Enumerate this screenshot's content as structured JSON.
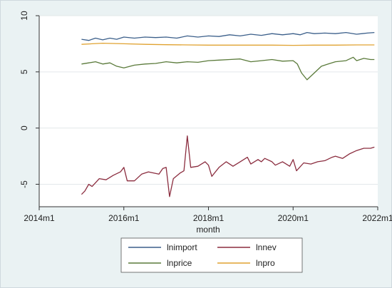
{
  "chart_data": {
    "type": "line",
    "title": "",
    "xlabel": "month",
    "ylabel": "",
    "x_ticks": [
      "2014m1",
      "2016m1",
      "2018m1",
      "2020m1",
      "2022m1"
    ],
    "y_ticks": [
      "-5",
      "0",
      "5",
      "10"
    ],
    "xlim": [
      2014.0,
      2022.0
    ],
    "ylim": [
      -7,
      10
    ],
    "grid": "horizontal",
    "legend_position": "bottom",
    "series": [
      {
        "name": "lnimport",
        "color": "#3b5f8a",
        "points": [
          [
            2015.0,
            7.9
          ],
          [
            2015.17,
            7.8
          ],
          [
            2015.33,
            8.0
          ],
          [
            2015.5,
            7.85
          ],
          [
            2015.67,
            8.0
          ],
          [
            2015.83,
            7.9
          ],
          [
            2016.0,
            8.1
          ],
          [
            2016.25,
            8.0
          ],
          [
            2016.5,
            8.1
          ],
          [
            2016.75,
            8.05
          ],
          [
            2017.0,
            8.1
          ],
          [
            2017.25,
            8.0
          ],
          [
            2017.5,
            8.2
          ],
          [
            2017.75,
            8.1
          ],
          [
            2018.0,
            8.2
          ],
          [
            2018.25,
            8.15
          ],
          [
            2018.5,
            8.3
          ],
          [
            2018.75,
            8.2
          ],
          [
            2019.0,
            8.35
          ],
          [
            2019.25,
            8.25
          ],
          [
            2019.5,
            8.4
          ],
          [
            2019.75,
            8.3
          ],
          [
            2020.0,
            8.4
          ],
          [
            2020.17,
            8.3
          ],
          [
            2020.33,
            8.5
          ],
          [
            2020.5,
            8.4
          ],
          [
            2020.75,
            8.45
          ],
          [
            2021.0,
            8.4
          ],
          [
            2021.25,
            8.5
          ],
          [
            2021.5,
            8.35
          ],
          [
            2021.75,
            8.45
          ],
          [
            2021.92,
            8.5
          ]
        ]
      },
      {
        "name": "lnnev",
        "color": "#8b2d3f",
        "points": [
          [
            2015.0,
            -5.9
          ],
          [
            2015.08,
            -5.6
          ],
          [
            2015.17,
            -5.0
          ],
          [
            2015.25,
            -5.2
          ],
          [
            2015.42,
            -4.5
          ],
          [
            2015.58,
            -4.6
          ],
          [
            2015.75,
            -4.2
          ],
          [
            2015.92,
            -3.9
          ],
          [
            2016.0,
            -3.5
          ],
          [
            2016.08,
            -4.7
          ],
          [
            2016.25,
            -4.7
          ],
          [
            2016.42,
            -4.1
          ],
          [
            2016.58,
            -3.9
          ],
          [
            2016.83,
            -4.1
          ],
          [
            2016.92,
            -3.6
          ],
          [
            2017.0,
            -3.5
          ],
          [
            2017.08,
            -6.1
          ],
          [
            2017.17,
            -4.5
          ],
          [
            2017.33,
            -4.0
          ],
          [
            2017.42,
            -3.8
          ],
          [
            2017.5,
            -0.7
          ],
          [
            2017.58,
            -3.5
          ],
          [
            2017.75,
            -3.4
          ],
          [
            2017.92,
            -3.0
          ],
          [
            2018.0,
            -3.3
          ],
          [
            2018.08,
            -4.3
          ],
          [
            2018.25,
            -3.5
          ],
          [
            2018.42,
            -3.0
          ],
          [
            2018.58,
            -3.4
          ],
          [
            2018.75,
            -3.0
          ],
          [
            2018.92,
            -2.6
          ],
          [
            2019.0,
            -3.2
          ],
          [
            2019.17,
            -2.8
          ],
          [
            2019.25,
            -3.0
          ],
          [
            2019.33,
            -2.7
          ],
          [
            2019.5,
            -3.0
          ],
          [
            2019.58,
            -3.3
          ],
          [
            2019.75,
            -3.0
          ],
          [
            2019.92,
            -3.4
          ],
          [
            2020.0,
            -2.8
          ],
          [
            2020.08,
            -3.8
          ],
          [
            2020.25,
            -3.1
          ],
          [
            2020.42,
            -3.2
          ],
          [
            2020.58,
            -3.0
          ],
          [
            2020.75,
            -2.9
          ],
          [
            2020.92,
            -2.6
          ],
          [
            2021.0,
            -2.5
          ],
          [
            2021.17,
            -2.7
          ],
          [
            2021.33,
            -2.3
          ],
          [
            2021.5,
            -2.0
          ],
          [
            2021.67,
            -1.8
          ],
          [
            2021.83,
            -1.8
          ],
          [
            2021.92,
            -1.7
          ]
        ]
      },
      {
        "name": "lnprice",
        "color": "#5a7a3a",
        "points": [
          [
            2015.0,
            5.7
          ],
          [
            2015.17,
            5.8
          ],
          [
            2015.33,
            5.9
          ],
          [
            2015.5,
            5.7
          ],
          [
            2015.67,
            5.8
          ],
          [
            2015.83,
            5.5
          ],
          [
            2016.0,
            5.35
          ],
          [
            2016.25,
            5.6
          ],
          [
            2016.5,
            5.7
          ],
          [
            2016.75,
            5.75
          ],
          [
            2017.0,
            5.9
          ],
          [
            2017.25,
            5.8
          ],
          [
            2017.5,
            5.9
          ],
          [
            2017.75,
            5.85
          ],
          [
            2018.0,
            6.0
          ],
          [
            2018.25,
            6.05
          ],
          [
            2018.5,
            6.1
          ],
          [
            2018.75,
            6.15
          ],
          [
            2019.0,
            5.9
          ],
          [
            2019.25,
            6.0
          ],
          [
            2019.5,
            6.1
          ],
          [
            2019.75,
            5.95
          ],
          [
            2020.0,
            6.0
          ],
          [
            2020.1,
            5.7
          ],
          [
            2020.2,
            4.9
          ],
          [
            2020.33,
            4.3
          ],
          [
            2020.5,
            4.9
          ],
          [
            2020.67,
            5.5
          ],
          [
            2020.83,
            5.7
          ],
          [
            2021.0,
            5.9
          ],
          [
            2021.25,
            6.0
          ],
          [
            2021.42,
            6.3
          ],
          [
            2021.5,
            6.0
          ],
          [
            2021.67,
            6.2
          ],
          [
            2021.83,
            6.1
          ],
          [
            2021.92,
            6.1
          ]
        ]
      },
      {
        "name": "lnpro",
        "color": "#e0a230",
        "points": [
          [
            2015.0,
            7.45
          ],
          [
            2015.5,
            7.55
          ],
          [
            2016.0,
            7.5
          ],
          [
            2016.5,
            7.45
          ],
          [
            2017.0,
            7.42
          ],
          [
            2017.5,
            7.4
          ],
          [
            2018.0,
            7.38
          ],
          [
            2018.5,
            7.38
          ],
          [
            2019.0,
            7.38
          ],
          [
            2019.5,
            7.38
          ],
          [
            2020.0,
            7.36
          ],
          [
            2020.5,
            7.38
          ],
          [
            2021.0,
            7.38
          ],
          [
            2021.5,
            7.4
          ],
          [
            2021.92,
            7.4
          ]
        ]
      }
    ]
  }
}
